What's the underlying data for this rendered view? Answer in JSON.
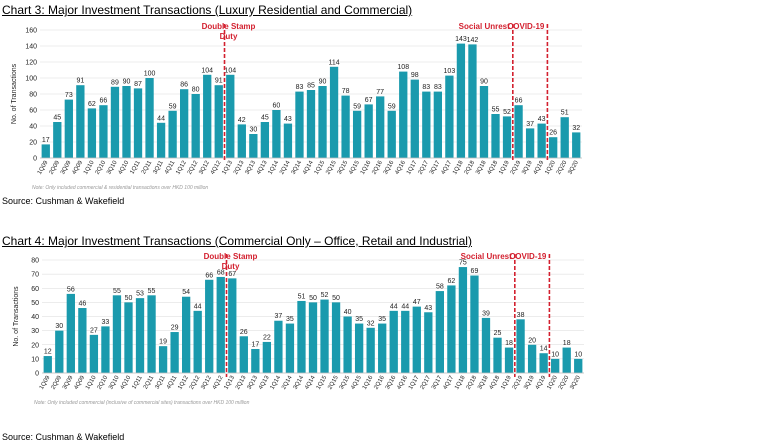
{
  "colors": {
    "bar": "#1a9aad",
    "annotation": "#d3202f",
    "grid": "#d9d9d9"
  },
  "titles": {
    "chart1": "Chart 3: Major Investment Transactions (Luxury Residential and Commercial)",
    "chart2": "Chart 4: Major Investment Transactions (Commercial Only – Office, Retail and Industrial)"
  },
  "sources": {
    "chart1": "Source: Cushman & Wakefield",
    "chart2": "Source: Cushman & Wakefield"
  },
  "chart_data": [
    {
      "type": "bar",
      "title": "Chart 3: Major Investment Transactions (Luxury Residential and Commercial)",
      "ylabel": "No. of Transactions",
      "xlabel": "",
      "ylim": [
        0,
        160
      ],
      "yticks": [
        0,
        20,
        40,
        60,
        80,
        100,
        120,
        140,
        160
      ],
      "grid": true,
      "note": "Note: Only included commercial & residential transactions over HKD 100 million",
      "categories": [
        "1Q09",
        "2Q09",
        "3Q09",
        "4Q09",
        "1Q10",
        "2Q10",
        "3Q10",
        "4Q10",
        "1Q11",
        "2Q11",
        "3Q11",
        "4Q11",
        "1Q12",
        "2Q12",
        "3Q12",
        "4Q12",
        "1Q13",
        "2Q13",
        "3Q13",
        "4Q13",
        "1Q14",
        "2Q14",
        "3Q14",
        "4Q14",
        "1Q15",
        "2Q15",
        "3Q15",
        "4Q15",
        "1Q16",
        "2Q16",
        "3Q16",
        "4Q16",
        "1Q17",
        "2Q17",
        "3Q17",
        "4Q17",
        "1Q18",
        "2Q18",
        "3Q18",
        "4Q18",
        "1Q19",
        "2Q19",
        "3Q19",
        "4Q19",
        "1Q20",
        "2Q20",
        "3Q20"
      ],
      "values": [
        17,
        45,
        73,
        91,
        62,
        66,
        89,
        90,
        87,
        100,
        44,
        59,
        86,
        80,
        104,
        91,
        104,
        42,
        30,
        45,
        60,
        43,
        83,
        85,
        90,
        114,
        78,
        59,
        67,
        77,
        59,
        108,
        98,
        83,
        83,
        103,
        143,
        142,
        90,
        55,
        52,
        66,
        37,
        43,
        26,
        51,
        32
      ],
      "annotations": [
        {
          "label": "Double Stamp\nDuty",
          "between": [
            "4Q12",
            "1Q13"
          ]
        },
        {
          "label": "Social Unrest",
          "between": [
            "1Q19",
            "2Q19"
          ]
        },
        {
          "label": "COVID-19",
          "between": [
            "4Q19",
            "1Q20"
          ]
        }
      ]
    },
    {
      "type": "bar",
      "title": "Chart 4: Major Investment Transactions (Commercial Only – Office, Retail and Industrial)",
      "ylabel": "No. of Transactions",
      "xlabel": "",
      "ylim": [
        0,
        80
      ],
      "yticks": [
        0,
        10,
        20,
        30,
        40,
        50,
        60,
        70,
        80
      ],
      "grid": true,
      "note": "Note: Only included commercial (inclusive of commercial sites) transactions over HKD 100 million",
      "categories": [
        "1Q09",
        "2Q09",
        "3Q09",
        "4Q09",
        "1Q10",
        "2Q10",
        "3Q10",
        "4Q10",
        "1Q11",
        "2Q11",
        "3Q11",
        "4Q11",
        "1Q12",
        "2Q12",
        "3Q12",
        "4Q12",
        "1Q13",
        "2Q13",
        "3Q13",
        "4Q13",
        "1Q14",
        "2Q14",
        "3Q14",
        "4Q14",
        "1Q15",
        "2Q15",
        "3Q15",
        "4Q15",
        "1Q16",
        "2Q16",
        "3Q16",
        "4Q16",
        "1Q17",
        "2Q17",
        "3Q17",
        "4Q17",
        "1Q18",
        "2Q18",
        "3Q18",
        "4Q18",
        "1Q19",
        "2Q19",
        "3Q19",
        "4Q19",
        "1Q20",
        "2Q20",
        "3Q20"
      ],
      "values": [
        12,
        30,
        56,
        46,
        27,
        33,
        55,
        50,
        53,
        55,
        19,
        29,
        54,
        44,
        66,
        68,
        67,
        26,
        17,
        22,
        37,
        35,
        51,
        50,
        52,
        50,
        40,
        35,
        32,
        35,
        44,
        44,
        47,
        43,
        58,
        62,
        75,
        69,
        39,
        25,
        18,
        38,
        20,
        14,
        10,
        18,
        10
      ],
      "annotations": [
        {
          "label": "Double Stamp\nDuty",
          "between": [
            "4Q12",
            "1Q13"
          ]
        },
        {
          "label": "Social Unrest",
          "between": [
            "1Q19",
            "2Q19"
          ]
        },
        {
          "label": "COVID-19",
          "between": [
            "4Q19",
            "1Q20"
          ]
        }
      ]
    }
  ]
}
